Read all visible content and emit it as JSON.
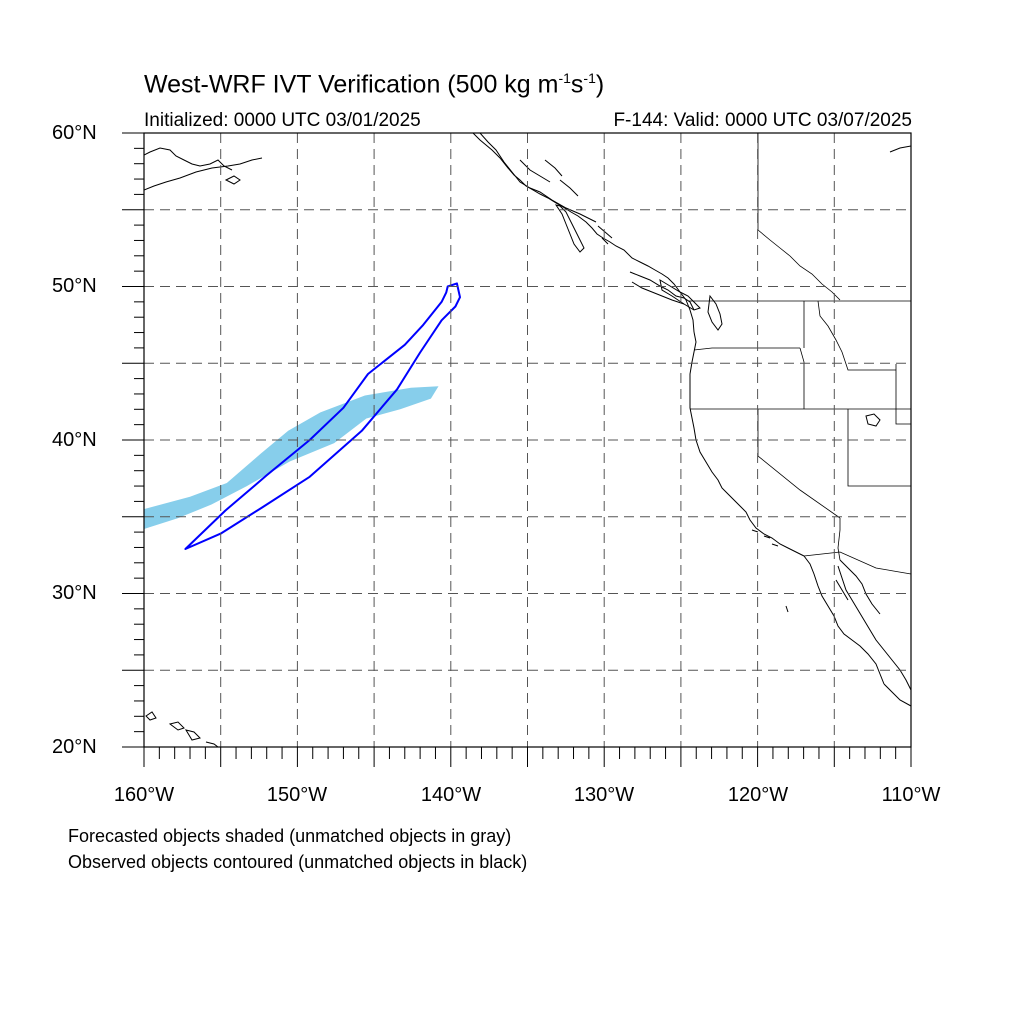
{
  "title": {
    "main": "West-WRF IVT Verification (500 kg m",
    "exp1": "-1",
    "mid": "s",
    "exp2": "-1",
    "close": ")"
  },
  "subtitle_left": "Initialized: 0000 UTC 03/01/2025",
  "subtitle_right": "F-144: Valid: 0000 UTC 03/07/2025",
  "lat_labels": [
    "60°N",
    "50°N",
    "40°N",
    "30°N",
    "20°N"
  ],
  "lon_labels": [
    "160°W",
    "150°W",
    "140°W",
    "130°W",
    "120°W",
    "110°W"
  ],
  "notes": [
    "Forecasted objects shaded (unmatched objects in gray)",
    "Observed objects contoured (unmatched objects in black)"
  ],
  "map_extent": {
    "lon_min": -160,
    "lon_max": -110,
    "lat_min": 20,
    "lat_max": 60
  },
  "grid_interval_deg": 5,
  "colors": {
    "forecast_fill": "#87ceeb",
    "observed_contour": "#0000ff",
    "coastline": "#000000",
    "grid": "#555555"
  },
  "forecast_object_lonlat": [
    [
      -160,
      35.5
    ],
    [
      -157,
      36.3
    ],
    [
      -154.6,
      37.2
    ],
    [
      -152.4,
      39.1
    ],
    [
      -150.6,
      40.6
    ],
    [
      -148.5,
      41.8
    ],
    [
      -145.6,
      42.9
    ],
    [
      -142.6,
      43.4
    ],
    [
      -140.8,
      43.5
    ],
    [
      -141.3,
      42.7
    ],
    [
      -143.3,
      42.0
    ],
    [
      -145.5,
      41.4
    ],
    [
      -147.6,
      39.8
    ],
    [
      -150.5,
      38.6
    ],
    [
      -153.3,
      37.0
    ],
    [
      -155.6,
      35.8
    ],
    [
      -157.8,
      34.9
    ],
    [
      -160,
      34.2
    ]
  ],
  "observed_object_lonlat": [
    [
      -157.3,
      32.9
    ],
    [
      -154.7,
      35.4
    ],
    [
      -152.0,
      37.7
    ],
    [
      -149.2,
      40.0
    ],
    [
      -147.0,
      42.1
    ],
    [
      -145.4,
      44.3
    ],
    [
      -143.0,
      46.2
    ],
    [
      -141.8,
      47.5
    ],
    [
      -141.0,
      48.5
    ],
    [
      -140.6,
      49.0
    ],
    [
      -140.3,
      49.6
    ],
    [
      -140.2,
      50.0
    ],
    [
      -139.6,
      50.2
    ],
    [
      -139.4,
      49.3
    ],
    [
      -139.7,
      48.7
    ],
    [
      -140.6,
      47.8
    ],
    [
      -142.0,
      45.7
    ],
    [
      -143.5,
      43.3
    ],
    [
      -145.8,
      40.6
    ],
    [
      -149.2,
      37.6
    ],
    [
      -152.3,
      35.6
    ],
    [
      -155.0,
      33.9
    ],
    [
      -157.3,
      32.9
    ]
  ]
}
